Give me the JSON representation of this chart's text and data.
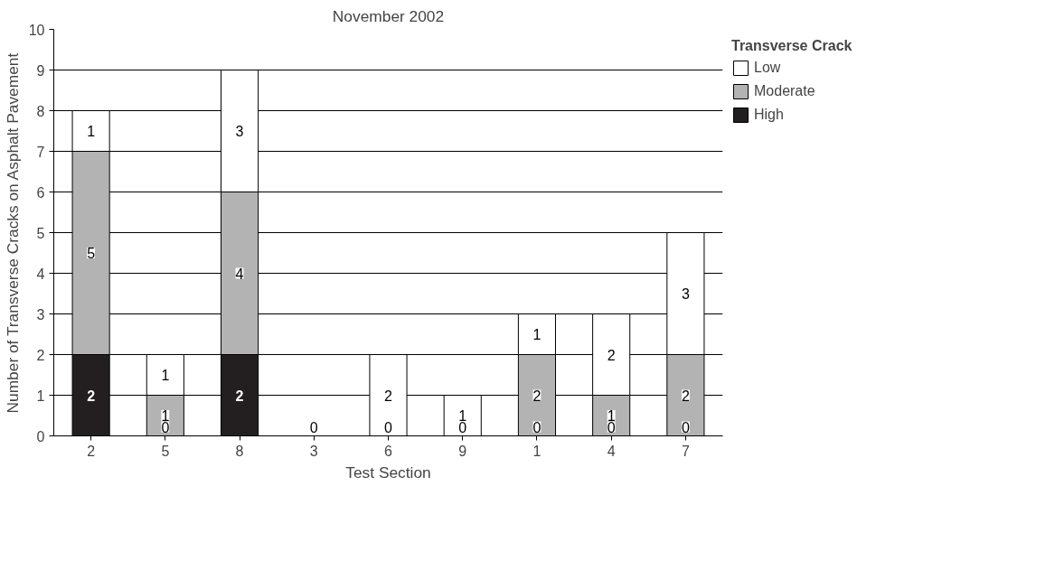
{
  "chart_data": {
    "type": "bar",
    "stacked": true,
    "title": "November 2002",
    "xlabel": "Test Section",
    "ylabel": "Number of Transverse Cracks on Asphalt Pavement",
    "legend_title": "Transverse Crack",
    "categories": [
      "2",
      "5",
      "8",
      "3",
      "6",
      "9",
      "1",
      "4",
      "7"
    ],
    "series": [
      {
        "name": "High",
        "color": "#231f20",
        "values": [
          2,
          0,
          2,
          0,
          0,
          0,
          0,
          0,
          0
        ],
        "value_labels": [
          "2",
          "0",
          "2",
          "0",
          "0",
          "0",
          "0",
          "0",
          "0"
        ]
      },
      {
        "name": "Moderate",
        "color": "#b3b3b3",
        "values": [
          5,
          1,
          4,
          0,
          0,
          0,
          2,
          1,
          2
        ],
        "value_labels": [
          "5",
          "1",
          "4",
          null,
          null,
          null,
          "2",
          "1",
          "2"
        ]
      },
      {
        "name": "Low",
        "color": "#ffffff",
        "values": [
          1,
          1,
          3,
          0,
          2,
          1,
          1,
          2,
          3
        ],
        "value_labels": [
          "1",
          "1",
          "3",
          null,
          "2",
          "1",
          "1",
          "2",
          "3"
        ]
      }
    ],
    "ylim": [
      0,
      10
    ],
    "yticks": [
      0,
      1,
      2,
      3,
      4,
      5,
      6,
      7,
      8,
      9,
      10
    ],
    "grid": "y",
    "legend": "top right"
  }
}
